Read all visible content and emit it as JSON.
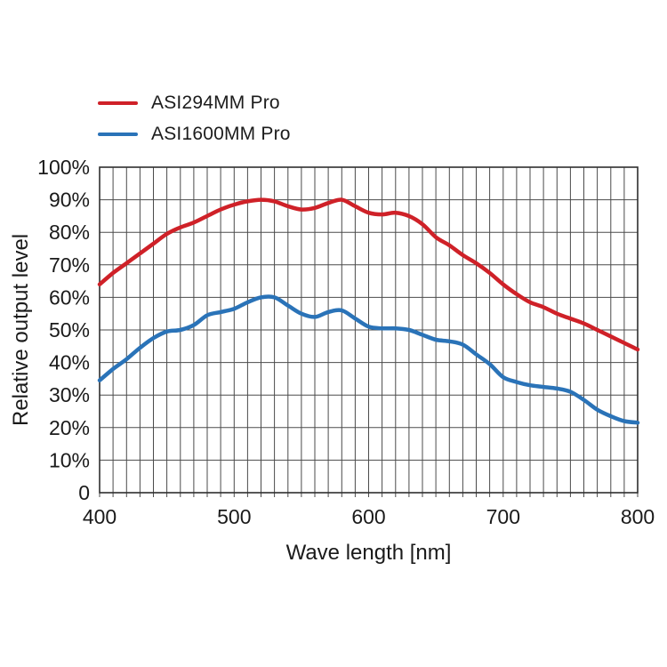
{
  "chart_data": {
    "type": "line",
    "title": "",
    "xlabel": "Wave length [nm]",
    "ylabel": "Relative output level",
    "xlim": [
      400,
      800
    ],
    "ylim": [
      0,
      100
    ],
    "x_grid_step": 10,
    "y_grid_step": 10,
    "grid": true,
    "legend_position": "top-left-above-plot",
    "x_ticks_labeled": [
      "400",
      "500",
      "600",
      "700",
      "800"
    ],
    "x_tick_values": [
      400,
      500,
      600,
      700,
      800
    ],
    "y_ticks_labeled": [
      "100%",
      "90%",
      "80%",
      "70%",
      "60%",
      "50%",
      "40%",
      "30%",
      "20%",
      "10%",
      "0"
    ],
    "y_tick_values": [
      100,
      90,
      80,
      70,
      60,
      50,
      40,
      30,
      20,
      10,
      0
    ],
    "x": [
      400,
      410,
      420,
      430,
      440,
      450,
      460,
      470,
      480,
      490,
      500,
      510,
      520,
      530,
      540,
      550,
      560,
      570,
      580,
      590,
      600,
      610,
      620,
      630,
      640,
      650,
      660,
      670,
      680,
      690,
      700,
      710,
      720,
      730,
      740,
      750,
      760,
      770,
      780,
      790,
      800
    ],
    "series": [
      {
        "name": "ASI294MM Pro",
        "color": "#cf2128",
        "values": [
          64,
          67.5,
          70.5,
          73.5,
          76.5,
          79.5,
          81.5,
          83,
          85,
          87,
          88.5,
          89.5,
          90,
          89.5,
          88,
          87,
          87.5,
          89,
          90,
          88,
          86,
          85.5,
          86,
          85,
          82.5,
          78.5,
          76,
          73,
          70.5,
          67.5,
          64,
          61,
          58.5,
          57,
          55,
          53.5,
          52,
          50,
          48,
          46,
          44
        ]
      },
      {
        "name": "ASI1600MM Pro",
        "color": "#2a73b8",
        "values": [
          34.5,
          38,
          41,
          44.5,
          47.5,
          49.5,
          50,
          51.5,
          54.5,
          55.5,
          56.5,
          58.5,
          60,
          60,
          57.5,
          55,
          54,
          55.5,
          56,
          53.5,
          51,
          50.5,
          50.5,
          50,
          48.5,
          47,
          46.5,
          45.5,
          42.5,
          39.5,
          35.5,
          34,
          33,
          32.5,
          32,
          31,
          28.5,
          25.5,
          23.5,
          22,
          21.5
        ]
      }
    ],
    "style": {
      "grid_color": "#4b4b4b",
      "border_color": "#2f2f2f",
      "text_color": "#1a1a1a",
      "line_width": 4.5
    }
  }
}
